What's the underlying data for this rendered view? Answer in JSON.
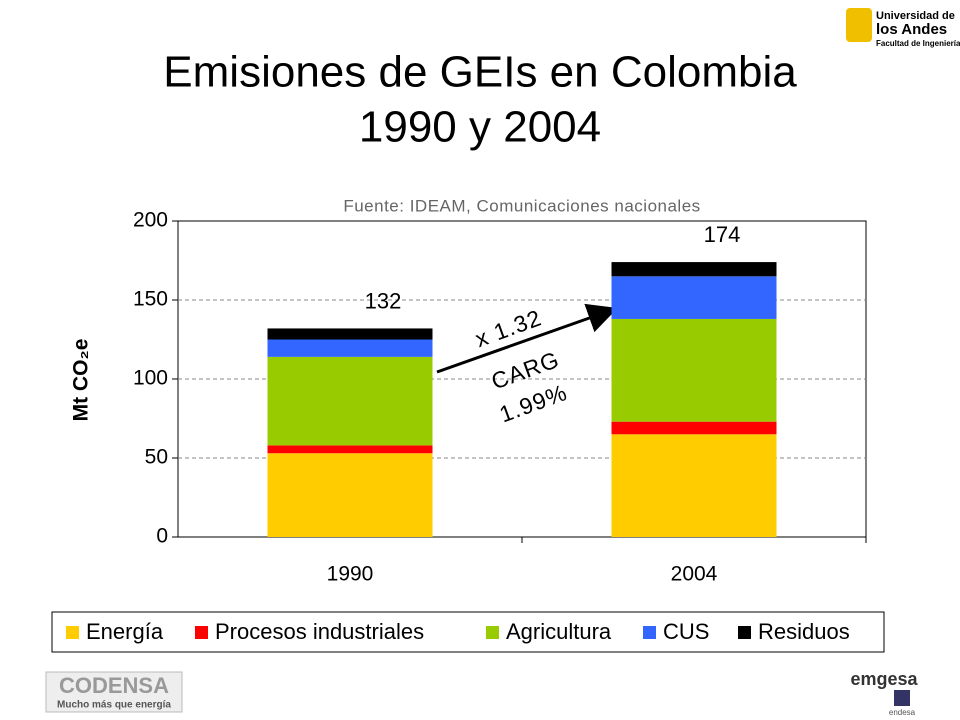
{
  "chart_data": {
    "type": "stacked_bar",
    "title": [
      "Emisiones de GEIs en Colombia",
      "1990 y 2004"
    ],
    "source": "Fuente: IDEAM, Comunicaciones nacionales",
    "ylabel": "Mt CO₂e",
    "categories": [
      "1990",
      "2004"
    ],
    "series": [
      {
        "name": "Energía",
        "color": "#ffcc00",
        "values": [
          53,
          65
        ]
      },
      {
        "name": "Procesos industriales",
        "color": "#ff0000",
        "values": [
          5,
          8
        ]
      },
      {
        "name": "Agricultura",
        "color": "#99cc00",
        "values": [
          56,
          65
        ]
      },
      {
        "name": "CUS",
        "color": "#3366ff",
        "values": [
          11,
          27
        ]
      },
      {
        "name": "Residuos",
        "color": "#000000",
        "values": [
          7,
          9
        ]
      }
    ],
    "totals": [
      132,
      174
    ],
    "annotations": [
      "x 1.32",
      "CARG",
      "1.99%"
    ],
    "ylim": [
      0,
      200
    ],
    "yticks": [
      0,
      50,
      100,
      150,
      200
    ],
    "grid": true,
    "legend": "bottom",
    "logos": {
      "university": [
        "Universidad de",
        "los Andes",
        "Facultad de Ingeniería"
      ],
      "codensa": [
        "CODENSA",
        "Mucho más que energía"
      ],
      "emgesa": [
        "emgesa",
        "endesa"
      ]
    }
  }
}
